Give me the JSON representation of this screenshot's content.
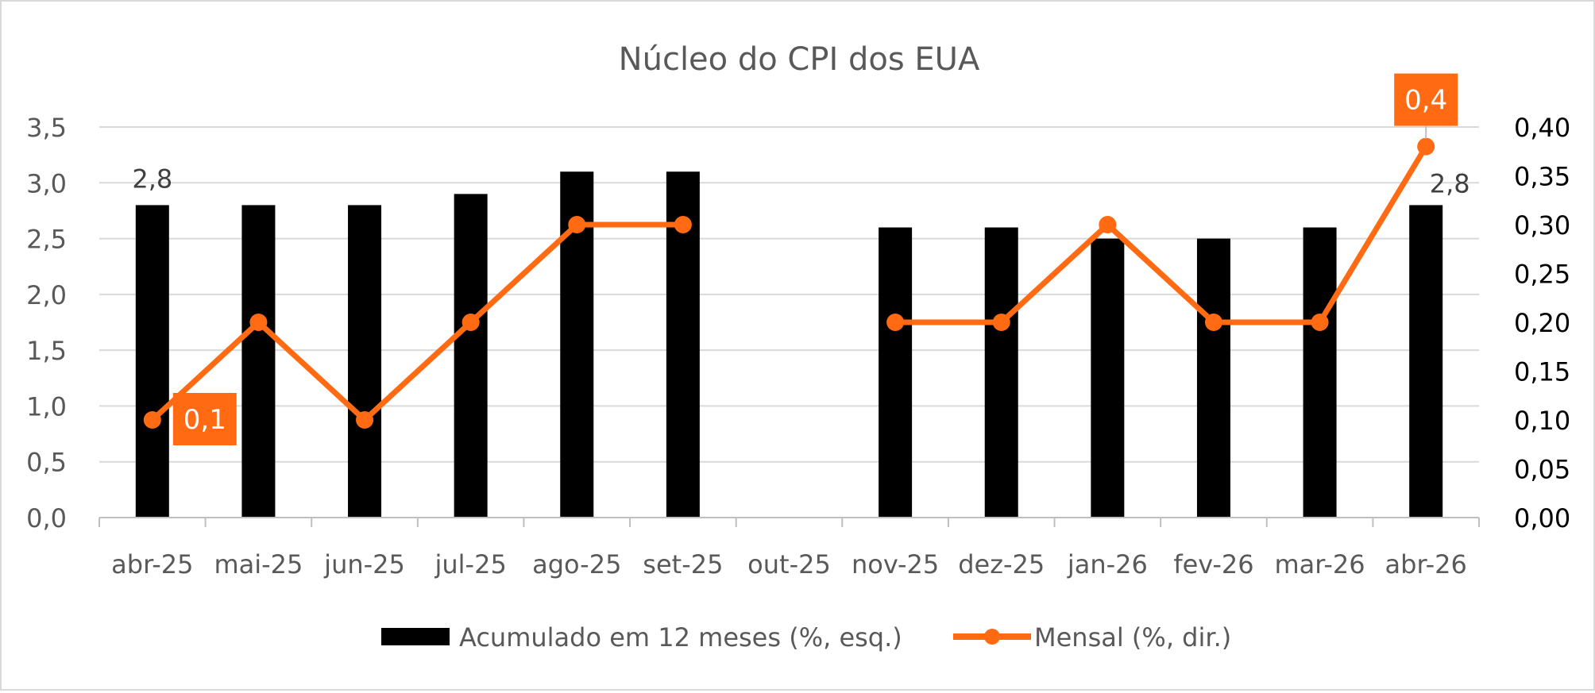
{
  "chart_data": {
    "type": "bar+line",
    "title": "Núcleo do CPI dos EUA",
    "categories": [
      "abr-25",
      "mai-25",
      "jun-25",
      "jul-25",
      "ago-25",
      "set-25",
      "out-25",
      "nov-25",
      "dez-25",
      "jan-26",
      "fev-26",
      "mar-26",
      "abr-26"
    ],
    "series": [
      {
        "name": "Acumulado em 12 meses (%, esq.)",
        "type": "bar",
        "axis": "left",
        "color": "#000000",
        "values": [
          2.8,
          2.8,
          2.8,
          2.9,
          3.1,
          3.1,
          null,
          2.6,
          2.6,
          2.5,
          2.5,
          2.6,
          2.8
        ]
      },
      {
        "name": "Mensal (%, dir.)",
        "type": "line",
        "axis": "right",
        "color": "#ff6a13",
        "values": [
          0.1,
          0.2,
          0.1,
          0.2,
          0.3,
          0.3,
          null,
          0.2,
          0.2,
          0.3,
          0.2,
          0.2,
          0.38
        ]
      }
    ],
    "y_left": {
      "ylim": [
        0,
        3.5
      ],
      "ticks": [
        "0,0",
        "0,5",
        "1,0",
        "1,5",
        "2,0",
        "2,5",
        "3,0",
        "3,5"
      ]
    },
    "y_right": {
      "ylim": [
        0,
        0.4
      ],
      "ticks": [
        "0,00",
        "0,05",
        "0,10",
        "0,15",
        "0,20",
        "0,25",
        "0,30",
        "0,35",
        "0,40"
      ]
    },
    "data_labels": [
      {
        "text": "2,8",
        "series": 0,
        "index": 0,
        "style": "plain"
      },
      {
        "text": "2,8",
        "series": 0,
        "index": 12,
        "style": "plain"
      },
      {
        "text": "0,1",
        "series": 1,
        "index": 0,
        "style": "boxed"
      },
      {
        "text": "0,4",
        "series": 1,
        "index": 12,
        "style": "boxed"
      }
    ],
    "grid": true,
    "legend_position": "bottom"
  }
}
